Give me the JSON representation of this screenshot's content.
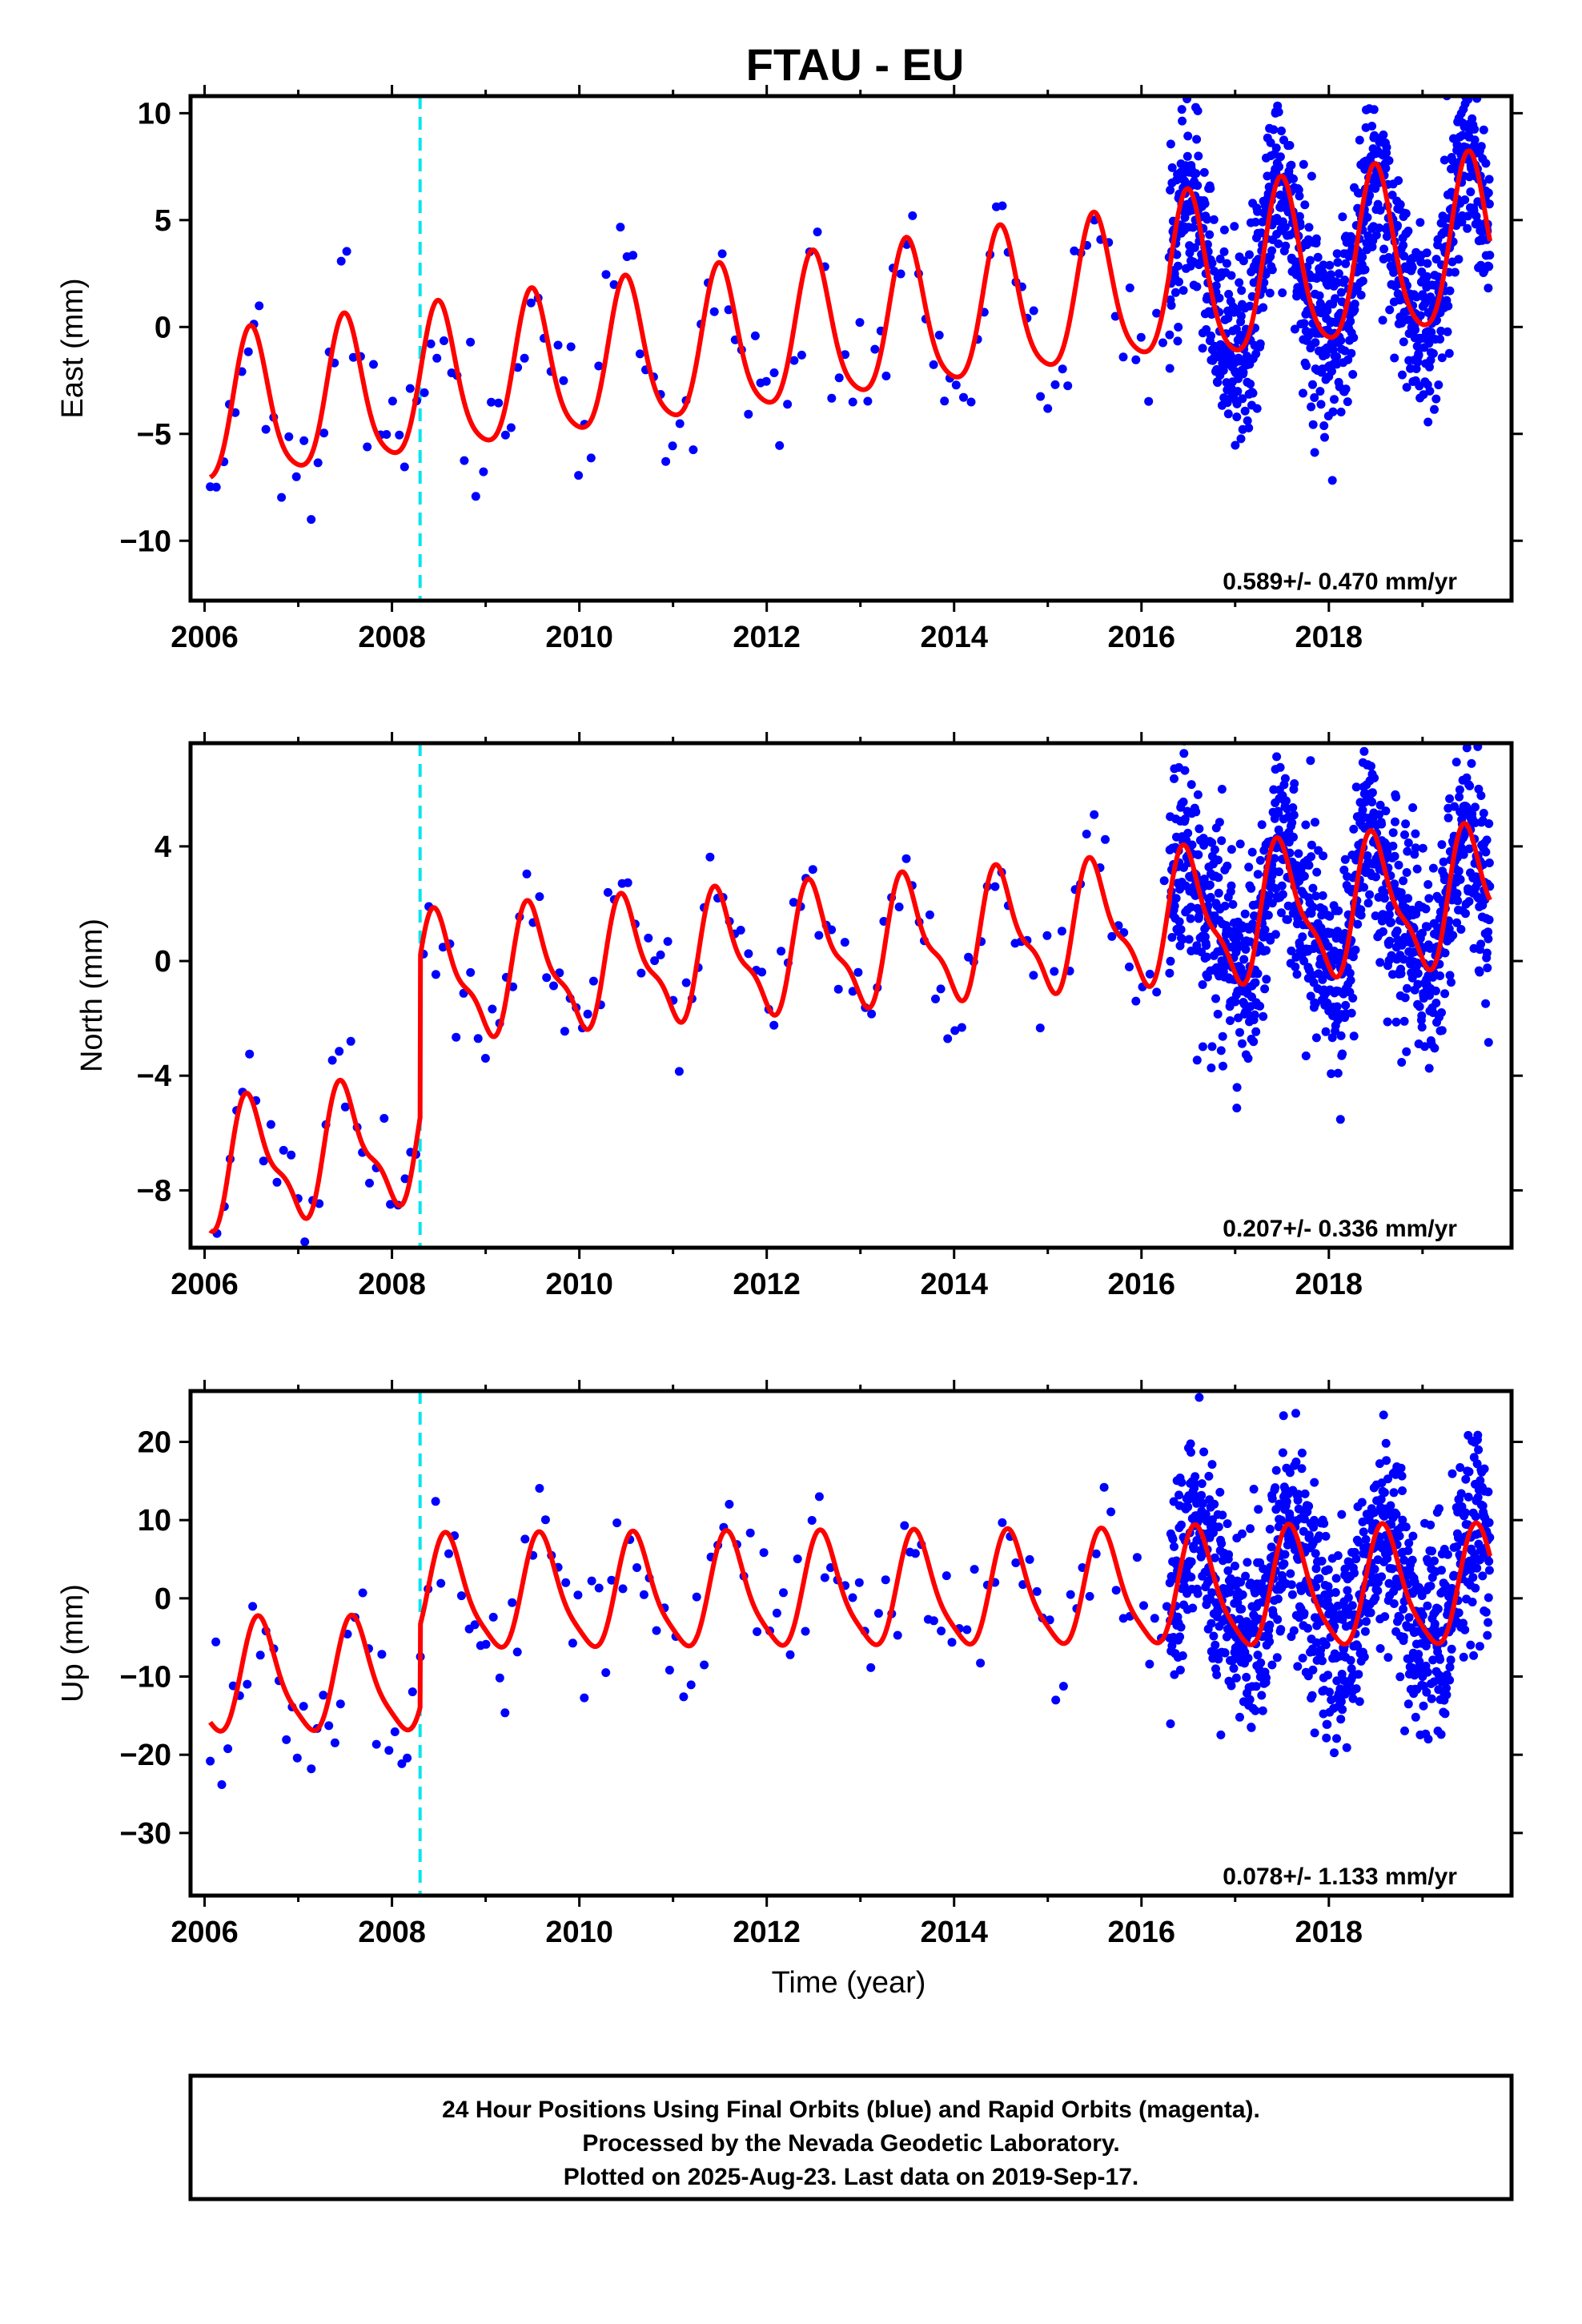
{
  "title": "FTAU - EU",
  "xlabel": "Time (year)",
  "caption": [
    "24 Hour Positions Using Final Orbits (blue) and Rapid Orbits (magenta).",
    "Processed by the Nevada Geodetic Laboratory.",
    "Plotted on 2025-Aug-23. Last data on 2019-Sep-17."
  ],
  "colors": {
    "points": "#0000ff",
    "model": "#ff0000",
    "offset_line": "#00e5ee"
  },
  "chart_data": [
    {
      "type": "scatter",
      "ylabel": "East (mm)",
      "rate_text": "0.589+/- 0.470 mm/yr",
      "xlim": [
        2005.85,
        2019.95
      ],
      "ylim": [
        -12.8,
        10.8
      ],
      "xticks": [
        "2006",
        "2008",
        "2010",
        "2012",
        "2014",
        "2016",
        "2018"
      ],
      "yticks": [
        "10",
        "5",
        "0",
        "−5",
        "−10"
      ],
      "ytick_values": [
        10,
        5,
        0,
        -5,
        -10
      ],
      "offset_epoch": 2008.3,
      "model": {
        "trend_start": -4.2,
        "trend_rate": 0.589,
        "annual_amp": 3.4,
        "annual_peak": 2006.5,
        "semiannual_amp": 0.6,
        "semiannual_phase": 0.3,
        "offset_jump": 0.0,
        "dense_start": 2016.3,
        "dense_amp_scale": 1.15
      },
      "sparse_scatter": 1.6,
      "dense_scatter": 2.3,
      "seed": 11
    },
    {
      "type": "scatter",
      "ylabel": "North (mm)",
      "rate_text": "0.207+/- 0.336 mm/yr",
      "xlim": [
        2005.85,
        2019.95
      ],
      "ylim": [
        -10.0,
        7.6
      ],
      "xticks": [
        "2006",
        "2008",
        "2010",
        "2012",
        "2014",
        "2016",
        "2018"
      ],
      "yticks": [
        "4",
        "0",
        "−4",
        "−8"
      ],
      "ytick_values": [
        4,
        0,
        -4,
        -8
      ],
      "offset_epoch": 2008.3,
      "model": {
        "trend_start": -7.3,
        "trend_rate": 0.45,
        "annual_amp": 2.0,
        "annual_peak": 2006.5,
        "semiannual_amp": 0.7,
        "semiannual_phase": 1.2,
        "offset_jump": 5.6,
        "dense_start": 2016.3,
        "dense_amp_scale": 1.1,
        "post_offset_rate": 0.25
      },
      "sparse_scatter": 0.9,
      "dense_scatter": 1.7,
      "seed": 23
    },
    {
      "type": "scatter",
      "ylabel": "Up (mm)",
      "rate_text": "0.078+/- 1.133 mm/yr",
      "xlim": [
        2005.85,
        2019.95
      ],
      "ylim": [
        -38,
        26.5
      ],
      "xticks": [
        "2006",
        "2008",
        "2010",
        "2012",
        "2014",
        "2016",
        "2018"
      ],
      "yticks": [
        "20",
        "10",
        "0",
        "−10",
        "−20",
        "−30"
      ],
      "ytick_values": [
        20,
        10,
        0,
        -10,
        -20,
        -30
      ],
      "offset_epoch": 2008.3,
      "model": {
        "trend_start": -10.5,
        "trend_rate": 0.078,
        "annual_amp": 7.0,
        "annual_peak": 2006.6,
        "semiannual_amp": 1.5,
        "semiannual_phase": 0.8,
        "offset_jump": 10.5,
        "dense_start": 2016.3,
        "dense_amp_scale": 1.05
      },
      "sparse_scatter": 4.5,
      "dense_scatter": 6.5,
      "seed": 37
    }
  ]
}
